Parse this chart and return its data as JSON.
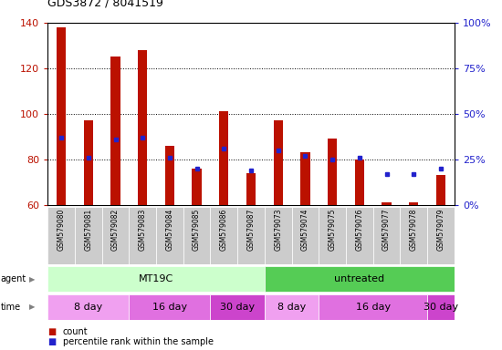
{
  "title": "GDS3872 / 8041519",
  "samples": [
    "GSM579080",
    "GSM579081",
    "GSM579082",
    "GSM579083",
    "GSM579084",
    "GSM579085",
    "GSM579086",
    "GSM579087",
    "GSM579073",
    "GSM579074",
    "GSM579075",
    "GSM579076",
    "GSM579077",
    "GSM579078",
    "GSM579079"
  ],
  "counts": [
    138,
    97,
    125,
    128,
    86,
    76,
    101,
    74,
    97,
    83,
    89,
    80,
    61,
    61,
    73
  ],
  "percentiles": [
    37,
    26,
    36,
    37,
    26,
    20,
    31,
    19,
    30,
    27,
    25,
    26,
    17,
    17,
    20
  ],
  "ylim_left": [
    60,
    140
  ],
  "ylim_right": [
    0,
    100
  ],
  "yticks_left": [
    60,
    80,
    100,
    120,
    140
  ],
  "yticks_right": [
    0,
    25,
    50,
    75,
    100
  ],
  "bar_color": "#bb1100",
  "dot_color": "#2222cc",
  "agent_groups": [
    {
      "label": "MT19C",
      "start": 0,
      "end": 8,
      "color": "#ccffcc"
    },
    {
      "label": "untreated",
      "start": 8,
      "end": 15,
      "color": "#55cc55"
    }
  ],
  "time_groups": [
    {
      "label": "8 day",
      "start": 0,
      "end": 3,
      "color": "#f0a0f0"
    },
    {
      "label": "16 day",
      "start": 3,
      "end": 6,
      "color": "#e070e0"
    },
    {
      "label": "30 day",
      "start": 6,
      "end": 8,
      "color": "#cc44cc"
    },
    {
      "label": "8 day",
      "start": 8,
      "end": 10,
      "color": "#f0a0f0"
    },
    {
      "label": "16 day",
      "start": 10,
      "end": 14,
      "color": "#e070e0"
    },
    {
      "label": "30 day",
      "start": 14,
      "end": 15,
      "color": "#cc44cc"
    }
  ],
  "legend_items": [
    {
      "label": "count",
      "color": "#bb1100",
      "marker": "s"
    },
    {
      "label": "percentile rank within the sample",
      "color": "#2222cc",
      "marker": "s"
    }
  ],
  "grid_lines": [
    80,
    100,
    120
  ],
  "fig_width": 5.5,
  "fig_height": 3.84,
  "dpi": 100
}
